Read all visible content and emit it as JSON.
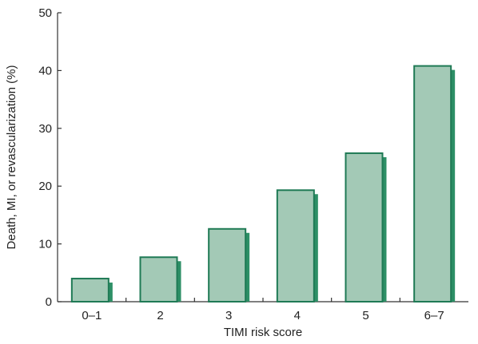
{
  "chart_data": {
    "type": "bar",
    "title": "",
    "xlabel": "TIMI risk score",
    "ylabel": "Death, MI, or revascularization (%)",
    "categories": [
      "0–1",
      "2",
      "3",
      "4",
      "5",
      "6–7"
    ],
    "values": [
      4.0,
      7.7,
      12.6,
      19.3,
      25.7,
      40.8
    ],
    "ylim": [
      0,
      50
    ],
    "yticks": [
      "0",
      "10",
      "20",
      "30",
      "40",
      "50"
    ],
    "grid": false,
    "legend": "none",
    "colors": {
      "bar_fill": "#a3c9b6",
      "bar_stroke": "#1f7a55",
      "bar_shadow": "#2d8f66",
      "axis": "#333333"
    }
  }
}
